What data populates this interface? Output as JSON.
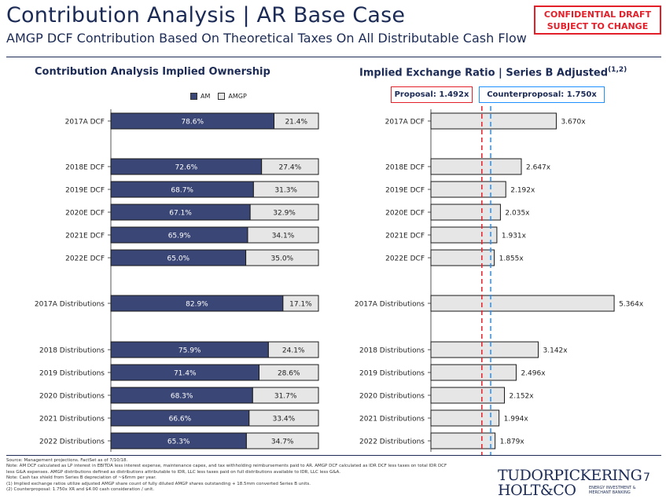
{
  "header": {
    "title": "Contribution Analysis | AR Base Case",
    "subtitle": "AMGP DCF Contribution Based On Theoretical Taxes On All Distributable Cash Flow",
    "confidential_line1": "CONFIDENTIAL DRAFT",
    "confidential_line2": "SUBJECT TO CHANGE",
    "accent_color": "#e3202a",
    "brand_color": "#1c2b55"
  },
  "left_panel": {
    "heading": "Contribution Analysis Implied Ownership",
    "legend": [
      {
        "label": "AM",
        "color": "#3a4676"
      },
      {
        "label": "AMGP",
        "color": "#e6e6e6"
      }
    ]
  },
  "right_panel": {
    "heading": "Implied Exchange Ratio | Series B Adjusted",
    "heading_sup": "(1,2)",
    "proposal_label": "Proposal: 1.492x",
    "counterproposal_label": "Counterproposal: 1.750x",
    "proposal_color": "#e3202a",
    "counterproposal_color": "#1e90ff"
  },
  "chart_data": [
    {
      "type": "bar",
      "orientation": "horizontal",
      "stacked": true,
      "title": "Contribution Analysis Implied Ownership",
      "categories": [
        "2017A DCF",
        "2018E DCF",
        "2019E DCF",
        "2020E DCF",
        "2021E DCF",
        "2022E DCF",
        "2017A Distributions",
        "2018 Distributions",
        "2019 Distributions",
        "2020 Distributions",
        "2021 Distributions",
        "2022 Distributions"
      ],
      "series": [
        {
          "name": "AM",
          "values": [
            78.6,
            72.6,
            68.7,
            67.1,
            65.9,
            65.0,
            82.9,
            75.9,
            71.4,
            68.3,
            66.6,
            65.3
          ],
          "labels": [
            "78.6%",
            "72.6%",
            "68.7%",
            "67.1%",
            "65.9%",
            "65.0%",
            "82.9%",
            "75.9%",
            "71.4%",
            "68.3%",
            "66.6%",
            "65.3%"
          ]
        },
        {
          "name": "AMGP",
          "values": [
            21.4,
            27.4,
            31.3,
            32.9,
            34.1,
            35.0,
            17.1,
            24.1,
            28.6,
            31.7,
            33.4,
            34.7
          ],
          "labels": [
            "21.4%",
            "27.4%",
            "31.3%",
            "32.9%",
            "34.1%",
            "35.0%",
            "17.1%",
            "24.1%",
            "28.6%",
            "31.7%",
            "33.4%",
            "34.7%"
          ]
        }
      ],
      "xlim": [
        0,
        100
      ],
      "legend": "top-center"
    },
    {
      "type": "bar",
      "orientation": "horizontal",
      "title": "Implied Exchange Ratio | Series B Adjusted",
      "categories": [
        "2017A DCF",
        "2018E DCF",
        "2019E DCF",
        "2020E DCF",
        "2021E DCF",
        "2022E DCF",
        "2017A Distributions",
        "2018 Distributions",
        "2019 Distributions",
        "2020 Distributions",
        "2021 Distributions",
        "2022 Distributions"
      ],
      "values": [
        3.67,
        2.647,
        2.192,
        2.035,
        1.931,
        1.855,
        5.364,
        3.142,
        2.496,
        2.152,
        1.994,
        1.879
      ],
      "labels": [
        "3.670x",
        "2.647x",
        "2.192x",
        "2.035x",
        "1.931x",
        "1.855x",
        "5.364x",
        "3.142x",
        "2.496x",
        "2.152x",
        "1.994x",
        "1.879x"
      ],
      "reference_lines": [
        {
          "name": "Proposal",
          "value": 1.492
        },
        {
          "name": "Counterproposal",
          "value": 1.75
        }
      ],
      "xlim": [
        0,
        5.5
      ]
    }
  ],
  "footnotes": [
    "Source: Management projections. FactSet as of 7/10/18.",
    "Note: AM DCF calculated as LP interest in EBITDA less interest expense, maintenance capex, and tax withholding reimbursements paid to AR. AMGP DCF calculated as IDR DCF less taxes on total IDR DCF",
    "less G&A expenses. AMGP distributions defined as distributions attributable to IDR, LLC less taxes paid on full distributions available to IDR, LLC less G&A.",
    "Note: Cash tax shield from Series B depreciation of ~$6mm per year.",
    "(1)      Implied exchange ratios utilize adjusted AMGP share count of fully diluted AMGP shares outstanding + 18.5mm converted Series B units.",
    "(2)      Counterproposal: 1.750x XR and $4.00 cash consideration / unit."
  ],
  "footer": {
    "logo_line1": "TUDORPICKERING",
    "logo_line2": "HOLT&CO",
    "logo_tag1": "ENERGY INVESTMENT &",
    "logo_tag2": "MERCHANT BANKING",
    "page_number": "7"
  }
}
